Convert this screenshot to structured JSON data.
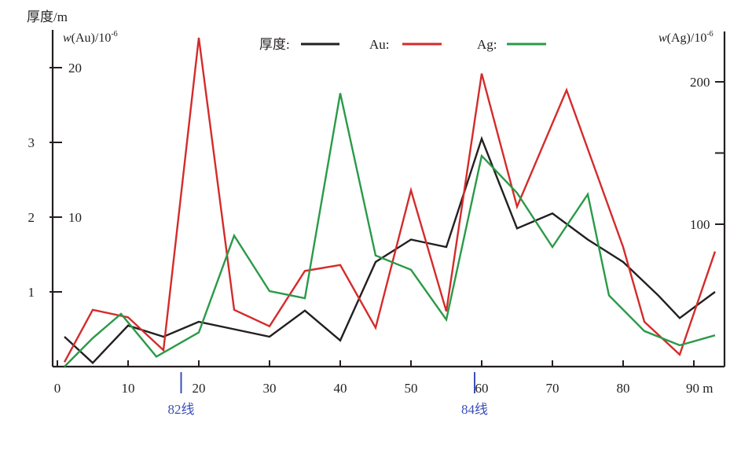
{
  "chart_data": {
    "type": "line",
    "x_tick_labels": [
      "0",
      "10",
      "20",
      "30",
      "40",
      "50",
      "60",
      "70",
      "80",
      "90 m"
    ],
    "xlim": [
      0,
      93
    ],
    "left_axis_thickness": {
      "label": "厚度/m",
      "ticks": [
        "1",
        "2",
        "3"
      ],
      "tick_values": [
        1,
        2,
        3
      ],
      "ylim": [
        0,
        4.5
      ]
    },
    "left_axis_au": {
      "label_prefix": "w",
      "label_suffix": "(Au)/10",
      "label_exp": "-6",
      "ticks": [
        "10",
        "20"
      ],
      "tick_values": [
        10,
        20
      ],
      "ylim": [
        0,
        22.5
      ]
    },
    "right_axis_ag": {
      "label_prefix": "w",
      "label_suffix": "(Ag)/10",
      "label_exp": "-6",
      "ticks": [
        "100",
        "200"
      ],
      "tick_values": [
        100,
        200
      ],
      "minor_ticks": [
        150
      ],
      "ylim": [
        0,
        225
      ]
    },
    "markers": [
      {
        "label": "82线",
        "x": 17.5
      },
      {
        "label": "84线",
        "x": 59
      }
    ],
    "legend": {
      "position": "top-center",
      "items": [
        {
          "label": "厚度:",
          "color": "#231f20"
        },
        {
          "label": "Au:",
          "color": "#d42b2b"
        },
        {
          "label": "Ag:",
          "color": "#2a9a48"
        }
      ]
    },
    "series": [
      {
        "name": "厚度",
        "axis": "thickness",
        "color": "#231f20",
        "x": [
          1,
          5,
          10,
          15,
          20,
          25,
          30,
          35,
          40,
          45,
          50,
          55,
          60,
          65,
          70,
          75,
          80,
          85,
          88,
          93
        ],
        "y": [
          0.4,
          0.05,
          0.55,
          0.4,
          0.6,
          0.5,
          0.4,
          0.75,
          0.35,
          1.4,
          1.7,
          1.6,
          3.05,
          1.85,
          2.05,
          1.7,
          1.4,
          0.95,
          0.65,
          1.0
        ]
      },
      {
        "name": "Au",
        "axis": "au",
        "color": "#d42b2b",
        "x": [
          1,
          5,
          10,
          15,
          20,
          25,
          30,
          35,
          40,
          45,
          50,
          55,
          60,
          65,
          72,
          80,
          83,
          88,
          93
        ],
        "y": [
          0.3,
          3.8,
          3.3,
          1.1,
          22.0,
          3.8,
          2.7,
          6.4,
          6.8,
          2.6,
          11.8,
          3.7,
          19.6,
          10.7,
          18.5,
          8.0,
          3.0,
          0.8,
          7.7
        ]
      },
      {
        "name": "Ag",
        "axis": "ag",
        "color": "#2a9a48",
        "x": [
          1,
          5,
          9,
          14,
          20,
          25,
          30,
          35,
          40,
          45,
          50,
          55,
          60,
          65,
          70,
          75,
          78,
          83,
          88,
          93
        ],
        "y": [
          0,
          20,
          37,
          7,
          24,
          92,
          53,
          48,
          192,
          78,
          68,
          33,
          148,
          122,
          84,
          121,
          50,
          25,
          15,
          22
        ]
      }
    ]
  }
}
